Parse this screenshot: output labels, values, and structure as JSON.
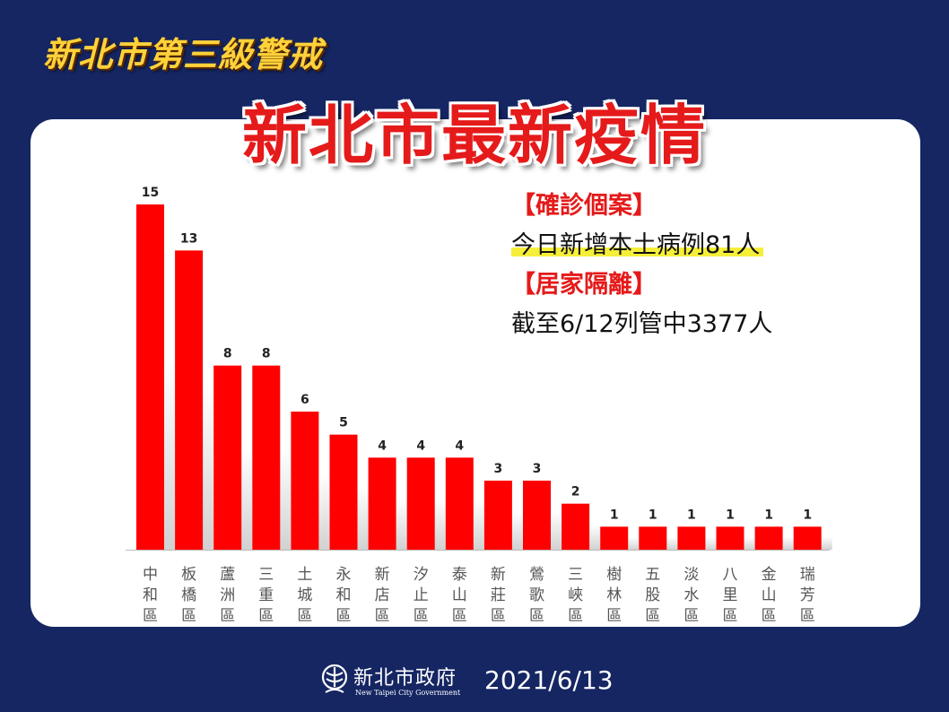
{
  "header": {
    "alert_title": "新北市第三級警戒",
    "main_title": "新北市最新疫情"
  },
  "info": {
    "confirmed_heading": "【確診個案】",
    "confirmed_text": "今日新增本土病例81人",
    "quarantine_heading": "【居家隔離】",
    "quarantine_text": "截至6/12列管中3377人"
  },
  "chart_data": {
    "type": "bar",
    "categories": [
      "中和區",
      "板橋區",
      "蘆洲區",
      "三重區",
      "土城區",
      "永和區",
      "新店區",
      "汐止區",
      "泰山區",
      "新莊區",
      "鶯歌區",
      "三峽區",
      "樹林區",
      "五股區",
      "淡水區",
      "八里區",
      "金山區",
      "瑞芳區"
    ],
    "values": [
      15,
      13,
      8,
      8,
      6,
      5,
      4,
      4,
      4,
      3,
      3,
      2,
      1,
      1,
      1,
      1,
      1,
      1
    ],
    "ylim": [
      0,
      15
    ],
    "grid": false,
    "legend": "none",
    "bar_color": "#ff0000"
  },
  "footer": {
    "gov_name": "新北市政府",
    "gov_name_en": "New Taipei City Government",
    "date": "2021/6/13"
  },
  "colors": {
    "background": "#152663",
    "accent_red": "#e51a1a",
    "title_yellow": "#ffd23a",
    "highlight": "#f6ef3a"
  }
}
